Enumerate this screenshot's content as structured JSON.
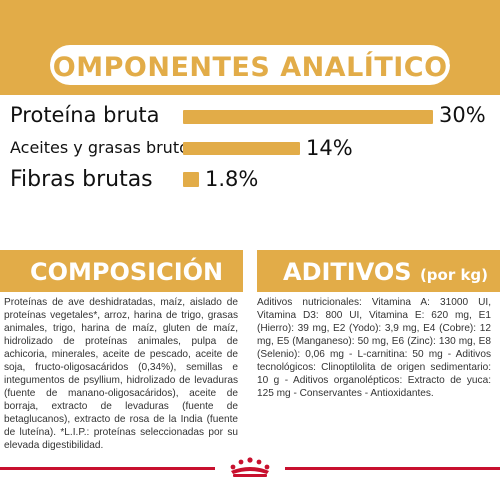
{
  "analytical": {
    "title": "COMPONENTES ANALÍTICOS",
    "items": [
      {
        "label": "Proteína bruta",
        "value": "30%",
        "fraction": 0.3
      },
      {
        "label": "Aceites y grasas brutos",
        "value": "14%",
        "fraction": 0.14
      },
      {
        "label": "Fibras brutas",
        "value": "1.8%",
        "fraction": 0.018
      }
    ]
  },
  "composition": {
    "title": "COMPOSICIÓN",
    "text": "Proteínas de ave deshidratadas, maíz, aislado de proteínas vegetales*, arroz, harina de trigo, grasas animales, trigo, harina de maíz, gluten de maíz, hidrolizado de proteínas animales, pulpa de achicoria, minerales, aceite de pescado, aceite de soja, fructo-oligosacáridos (0,34%), semillas e integumentos de psyllium, hidrolizado de levaduras (fuente de manano-oligosacáridos), aceite de borraja, extracto de levaduras (fuente de betaglucanos), extracto de rosa de la India (fuente de luteína). *L.I.P.: proteínas seleccionadas por su elevada digestibilidad."
  },
  "additives": {
    "title": "ADITIVOS",
    "subtitle": "(por kg)",
    "text": "Aditivos nutricionales: Vitamina A: 31000 UI, Vitamina D3: 800 UI, Vitamina E: 620 mg, E1 (Hierro): 39 mg, E2 (Yodo): 3,9 mg, E4 (Cobre): 12 mg, E5 (Manganeso): 50 mg, E6 (Zinc): 130 mg, E8 (Selenio): 0,06 mg - L-carnitina: 50 mg - Aditivos tecnológicos: Clinoptilolita de origen sedimentario: 10 g - Aditivos organolépticos: Extracto de yuca: 125 mg - Conservantes - Antioxidantes."
  },
  "colors": {
    "accent": "#e2ac48",
    "brand_red": "#c8102e"
  },
  "logo": {
    "icon": "royal-canin-crown-icon"
  }
}
